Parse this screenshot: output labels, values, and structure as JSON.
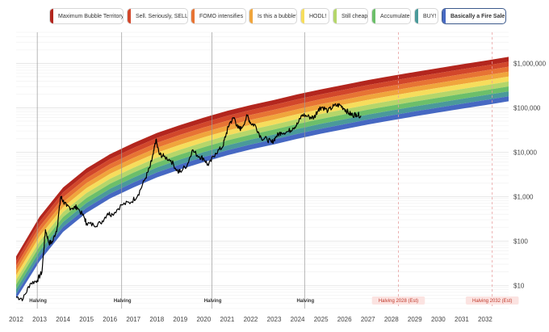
{
  "legend": [
    {
      "label": "Maximum Bubble Territory",
      "color": "#b3261e"
    },
    {
      "label": "Sell. Seriously, SELL!",
      "color": "#d2472b"
    },
    {
      "label": "FOMO intensifies",
      "color": "#e77434"
    },
    {
      "label": "Is this a bubble?",
      "color": "#f0a53c"
    },
    {
      "label": "HODL!",
      "color": "#f6dd5c"
    },
    {
      "label": "Still cheap",
      "color": "#b5d66a"
    },
    {
      "label": "Accumulate",
      "color": "#6cbf6a"
    },
    {
      "label": "BUY!",
      "color": "#4a9a9a"
    },
    {
      "label": "Basically a Fire Sale",
      "color": "#4668c2"
    }
  ],
  "chart_data": {
    "type": "area",
    "x_axis": {
      "min": 2012,
      "max": 2033,
      "ticks": [
        "2012",
        "2013",
        "2014",
        "2015",
        "2016",
        "2017",
        "2018",
        "2019",
        "2020",
        "2021",
        "2022",
        "2023",
        "2024",
        "2025",
        "2026",
        "2027",
        "2028",
        "2029",
        "2030",
        "2031",
        "2032"
      ]
    },
    "y_axis": {
      "scale": "log",
      "min": 3,
      "max": 5000000,
      "ticks": [
        "$10",
        "$100",
        "$1,000",
        "$10,000",
        "$100,000",
        "$1,000,000"
      ],
      "tick_values": [
        10,
        100,
        1000,
        10000,
        100000,
        1000000
      ]
    },
    "grid": "horizontal",
    "rainbow_bands": {
      "colors": [
        "#b3261e",
        "#d2472b",
        "#e77434",
        "#f0a53c",
        "#f6dd5c",
        "#b5d66a",
        "#6cbf6a",
        "#4a9a9a",
        "#4668c2"
      ],
      "bottom_edge": [
        [
          2012,
          5
        ],
        [
          2013,
          35
        ],
        [
          2014,
          160
        ],
        [
          2015,
          430
        ],
        [
          2016,
          900
        ],
        [
          2017,
          1600
        ],
        [
          2018,
          2700
        ],
        [
          2019,
          4100
        ],
        [
          2020,
          6000
        ],
        [
          2021,
          8500
        ],
        [
          2022,
          11500
        ],
        [
          2023,
          15000
        ],
        [
          2024,
          20000
        ],
        [
          2025,
          26000
        ],
        [
          2026,
          33000
        ],
        [
          2027,
          42000
        ],
        [
          2028,
          52000
        ],
        [
          2029,
          64000
        ],
        [
          2030,
          78000
        ],
        [
          2031,
          95000
        ],
        [
          2032,
          115000
        ],
        [
          2033,
          140000
        ]
      ],
      "top_edge": [
        [
          2012,
          45
        ],
        [
          2013,
          350
        ],
        [
          2014,
          1600
        ],
        [
          2015,
          4300
        ],
        [
          2016,
          9000
        ],
        [
          2017,
          16000
        ],
        [
          2018,
          27000
        ],
        [
          2019,
          41000
        ],
        [
          2020,
          60000
        ],
        [
          2021,
          85000
        ],
        [
          2022,
          115000
        ],
        [
          2023,
          150000
        ],
        [
          2024,
          200000
        ],
        [
          2025,
          260000
        ],
        [
          2026,
          330000
        ],
        [
          2027,
          420000
        ],
        [
          2028,
          520000
        ],
        [
          2029,
          640000
        ],
        [
          2030,
          780000
        ],
        [
          2031,
          950000
        ],
        [
          2032,
          1150000
        ],
        [
          2033,
          1400000
        ]
      ]
    },
    "price_series": [
      [
        2012.0,
        5.5
      ],
      [
        2012.3,
        5
      ],
      [
        2012.6,
        11
      ],
      [
        2012.9,
        13
      ],
      [
        2013.1,
        20
      ],
      [
        2013.25,
        180
      ],
      [
        2013.4,
        90
      ],
      [
        2013.55,
        95
      ],
      [
        2013.75,
        200
      ],
      [
        2013.9,
        1000
      ],
      [
        2014.0,
        800
      ],
      [
        2014.15,
        600
      ],
      [
        2014.4,
        550
      ],
      [
        2014.6,
        580
      ],
      [
        2014.9,
        340
      ],
      [
        2015.0,
        250
      ],
      [
        2015.3,
        230
      ],
      [
        2015.6,
        250
      ],
      [
        2015.9,
        420
      ],
      [
        2016.1,
        400
      ],
      [
        2016.5,
        650
      ],
      [
        2016.9,
        750
      ],
      [
        2017.2,
        1100
      ],
      [
        2017.5,
        2500
      ],
      [
        2017.7,
        4500
      ],
      [
        2017.85,
        9000
      ],
      [
        2017.96,
        19000
      ],
      [
        2018.1,
        9000
      ],
      [
        2018.3,
        8000
      ],
      [
        2018.6,
        6500
      ],
      [
        2018.9,
        3600
      ],
      [
        2019.0,
        3700
      ],
      [
        2019.3,
        5200
      ],
      [
        2019.5,
        11000
      ],
      [
        2019.8,
        8000
      ],
      [
        2020.0,
        7200
      ],
      [
        2020.2,
        5000
      ],
      [
        2020.5,
        9500
      ],
      [
        2020.8,
        13000
      ],
      [
        2020.95,
        25000
      ],
      [
        2021.1,
        45000
      ],
      [
        2021.3,
        60000
      ],
      [
        2021.45,
        35000
      ],
      [
        2021.6,
        34000
      ],
      [
        2021.86,
        66000
      ],
      [
        2022.0,
        45000
      ],
      [
        2022.2,
        40000
      ],
      [
        2022.45,
        21000
      ],
      [
        2022.7,
        19500
      ],
      [
        2022.9,
        16500
      ],
      [
        2023.1,
        23000
      ],
      [
        2023.3,
        28000
      ],
      [
        2023.6,
        29000
      ],
      [
        2023.8,
        35000
      ],
      [
        2024.0,
        43000
      ],
      [
        2024.2,
        70000
      ],
      [
        2024.5,
        62000
      ],
      [
        2024.7,
        60000
      ],
      [
        2024.9,
        95000
      ],
      [
        2025.05,
        104000
      ],
      [
        2025.3,
        85000
      ],
      [
        2025.55,
        110000
      ],
      [
        2025.8,
        115000
      ],
      [
        2026.0,
        95000
      ],
      [
        2026.2,
        75000
      ],
      [
        2026.35,
        68000
      ],
      [
        2026.5,
        72000
      ],
      [
        2026.7,
        66000
      ]
    ],
    "halvings": [
      {
        "x": 2012.9,
        "label": "Halving"
      },
      {
        "x": 2016.5,
        "label": "Halving"
      },
      {
        "x": 2020.35,
        "label": "Halving"
      },
      {
        "x": 2024.3,
        "label": "Halving"
      },
      {
        "x": 2028.3,
        "label": "Halving 2028 (Est)",
        "estimated": true
      },
      {
        "x": 2032.3,
        "label": "Halving 2032 (Est)",
        "estimated": true
      }
    ]
  }
}
